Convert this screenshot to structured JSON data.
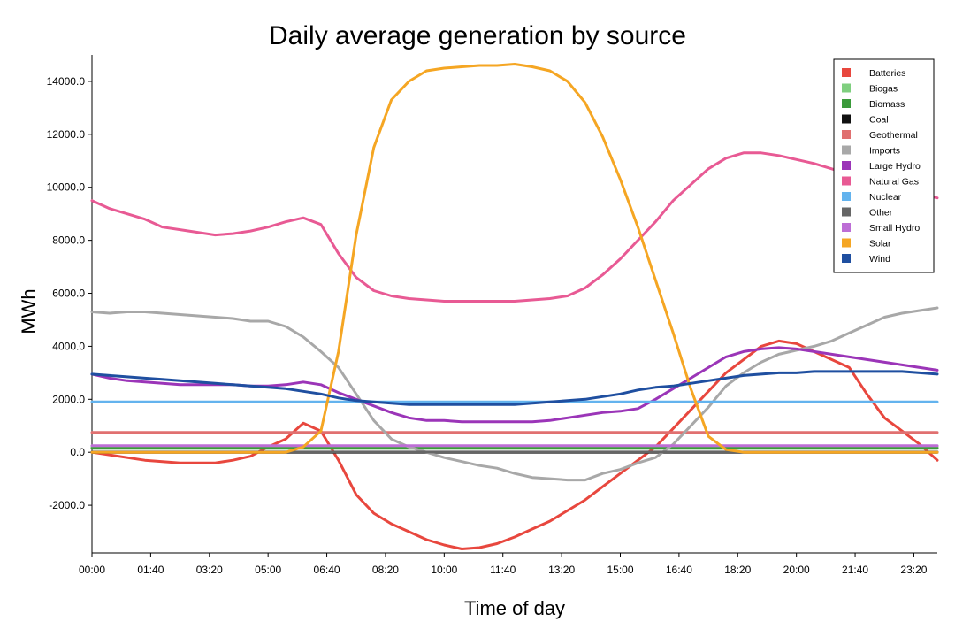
{
  "chart_data": {
    "type": "line",
    "title": "Daily average generation by source",
    "xlabel": "Time of day",
    "ylabel": "MWh",
    "x_ticks": [
      "00:00",
      "01:40",
      "03:20",
      "05:00",
      "06:40",
      "08:20",
      "10:00",
      "11:40",
      "13:20",
      "15:00",
      "16:40",
      "18:20",
      "20:00",
      "21:40",
      "23:20"
    ],
    "y_ticks": [
      -2000,
      0,
      2000,
      4000,
      6000,
      8000,
      10000,
      12000,
      14000
    ],
    "y_tick_labels": [
      "-2000.0",
      "0.0",
      "2000.0",
      "4000.0",
      "6000.0",
      "8000.0",
      "10000.0",
      "12000.0",
      "14000.0"
    ],
    "xlim": [
      "00:00",
      "24:00"
    ],
    "ylim": [
      -3800,
      15000
    ],
    "grid": false,
    "legend_position": "top-right",
    "x_hours": [
      0,
      0.5,
      1,
      1.5,
      2,
      2.5,
      3,
      3.5,
      4,
      4.5,
      5,
      5.5,
      6,
      6.5,
      7,
      7.5,
      8,
      8.5,
      9,
      9.5,
      10,
      10.5,
      11,
      11.5,
      12,
      12.5,
      13,
      13.5,
      14,
      14.5,
      15,
      15.5,
      16,
      16.5,
      17,
      17.5,
      18,
      18.5,
      19,
      19.5,
      20,
      20.5,
      21,
      21.5,
      22,
      22.5,
      23,
      23.5,
      24
    ],
    "series": [
      {
        "name": "Batteries",
        "color": "#e8473e",
        "values": [
          0,
          -100,
          -200,
          -300,
          -350,
          -400,
          -400,
          -400,
          -300,
          -150,
          200,
          500,
          1100,
          800,
          -300,
          -1600,
          -2300,
          -2700,
          -3000,
          -3300,
          -3500,
          -3650,
          -3600,
          -3450,
          -3200,
          -2900,
          -2600,
          -2200,
          -1800,
          -1300,
          -800,
          -300,
          200,
          900,
          1600,
          2300,
          3000,
          3500,
          4000,
          4200,
          4100,
          3800,
          3500,
          3200,
          2200,
          1300,
          800,
          300,
          -300
        ]
      },
      {
        "name": "Biogas",
        "color": "#7fcf7f",
        "values": [
          200,
          200,
          200,
          200,
          200,
          200,
          200,
          200,
          200,
          200,
          200,
          200,
          200,
          200,
          200,
          200,
          200,
          200,
          200,
          200,
          200,
          200,
          200,
          200,
          200,
          200,
          200,
          200,
          200,
          200,
          200,
          200,
          200,
          200,
          200,
          200,
          200,
          200,
          200,
          200,
          200,
          200,
          200,
          200,
          200,
          200,
          200,
          200,
          200
        ]
      },
      {
        "name": "Biomass",
        "color": "#3a9a3a",
        "values": [
          150,
          150,
          150,
          150,
          150,
          150,
          150,
          150,
          150,
          150,
          150,
          150,
          150,
          150,
          150,
          150,
          150,
          150,
          150,
          150,
          150,
          150,
          150,
          150,
          150,
          150,
          150,
          150,
          150,
          150,
          150,
          150,
          150,
          150,
          150,
          150,
          150,
          150,
          150,
          150,
          150,
          150,
          150,
          150,
          150,
          150,
          150,
          150,
          150
        ]
      },
      {
        "name": "Coal",
        "color": "#111111",
        "values": [
          0,
          0,
          0,
          0,
          0,
          0,
          0,
          0,
          0,
          0,
          0,
          0,
          0,
          0,
          0,
          0,
          0,
          0,
          0,
          0,
          0,
          0,
          0,
          0,
          0,
          0,
          0,
          0,
          0,
          0,
          0,
          0,
          0,
          0,
          0,
          0,
          0,
          0,
          0,
          0,
          0,
          0,
          0,
          0,
          0,
          0,
          0,
          0,
          0
        ]
      },
      {
        "name": "Geothermal",
        "color": "#e07070",
        "values": [
          750,
          750,
          750,
          750,
          750,
          750,
          750,
          750,
          750,
          750,
          750,
          750,
          750,
          750,
          750,
          750,
          750,
          750,
          750,
          750,
          750,
          750,
          750,
          750,
          750,
          750,
          750,
          750,
          750,
          750,
          750,
          750,
          750,
          750,
          750,
          750,
          750,
          750,
          750,
          750,
          750,
          750,
          750,
          750,
          750,
          750,
          750,
          750,
          750
        ]
      },
      {
        "name": "Imports",
        "color": "#a8a8a8",
        "values": [
          5300,
          5250,
          5300,
          5300,
          5250,
          5200,
          5150,
          5100,
          5050,
          4950,
          4950,
          4750,
          4350,
          3800,
          3200,
          2200,
          1200,
          500,
          200,
          0,
          -200,
          -350,
          -500,
          -600,
          -800,
          -950,
          -1000,
          -1050,
          -1050,
          -800,
          -650,
          -400,
          -200,
          300,
          1000,
          1700,
          2500,
          3000,
          3400,
          3700,
          3850,
          4000,
          4200,
          4500,
          4800,
          5100,
          5250,
          5350,
          5450
        ]
      },
      {
        "name": "Large Hydro",
        "color": "#9b35b8",
        "values": [
          2950,
          2800,
          2700,
          2650,
          2600,
          2550,
          2550,
          2550,
          2550,
          2500,
          2500,
          2550,
          2650,
          2550,
          2250,
          2000,
          1750,
          1500,
          1300,
          1200,
          1200,
          1150,
          1150,
          1150,
          1150,
          1150,
          1200,
          1300,
          1400,
          1500,
          1550,
          1650,
          2000,
          2400,
          2800,
          3200,
          3600,
          3800,
          3900,
          3950,
          3900,
          3800,
          3700,
          3600,
          3500,
          3400,
          3300,
          3200,
          3100
        ]
      },
      {
        "name": "Natural Gas",
        "color": "#e85a94",
        "values": [
          9500,
          9200,
          9000,
          8800,
          8500,
          8400,
          8300,
          8200,
          8250,
          8350,
          8500,
          8700,
          8850,
          8600,
          7500,
          6600,
          6100,
          5900,
          5800,
          5750,
          5700,
          5700,
          5700,
          5700,
          5700,
          5750,
          5800,
          5900,
          6200,
          6700,
          7300,
          8000,
          8700,
          9500,
          10100,
          10700,
          11100,
          11300,
          11300,
          11200,
          11050,
          10900,
          10700,
          10500,
          10300,
          10100,
          9900,
          9750,
          9600
        ]
      },
      {
        "name": "Nuclear",
        "color": "#63b3ee",
        "values": [
          1900,
          1900,
          1900,
          1900,
          1900,
          1900,
          1900,
          1900,
          1900,
          1900,
          1900,
          1900,
          1900,
          1900,
          1900,
          1900,
          1900,
          1900,
          1900,
          1900,
          1900,
          1900,
          1900,
          1900,
          1900,
          1900,
          1900,
          1900,
          1900,
          1900,
          1900,
          1900,
          1900,
          1900,
          1900,
          1900,
          1900,
          1900,
          1900,
          1900,
          1900,
          1900,
          1900,
          1900,
          1900,
          1900,
          1900,
          1900,
          1900
        ]
      },
      {
        "name": "Other",
        "color": "#666666",
        "values": [
          10,
          10,
          10,
          10,
          10,
          10,
          10,
          10,
          10,
          10,
          10,
          10,
          10,
          10,
          10,
          10,
          10,
          10,
          10,
          10,
          10,
          10,
          10,
          10,
          10,
          10,
          10,
          10,
          10,
          10,
          10,
          10,
          10,
          10,
          10,
          10,
          10,
          10,
          10,
          10,
          10,
          10,
          10,
          10,
          10,
          10,
          10,
          10,
          10
        ]
      },
      {
        "name": "Small Hydro",
        "color": "#bd6ed6",
        "values": [
          250,
          250,
          250,
          250,
          250,
          250,
          250,
          250,
          250,
          250,
          250,
          250,
          250,
          250,
          250,
          250,
          250,
          250,
          250,
          250,
          250,
          250,
          250,
          250,
          250,
          250,
          250,
          250,
          250,
          250,
          250,
          250,
          250,
          250,
          250,
          250,
          250,
          250,
          250,
          250,
          250,
          250,
          250,
          250,
          250,
          250,
          250,
          250,
          250
        ]
      },
      {
        "name": "Solar",
        "color": "#f5a623",
        "values": [
          0,
          0,
          0,
          0,
          0,
          0,
          0,
          0,
          0,
          0,
          0,
          0,
          200,
          800,
          3800,
          8200,
          11500,
          13300,
          14000,
          14400,
          14500,
          14550,
          14600,
          14600,
          14650,
          14550,
          14400,
          14000,
          13200,
          11900,
          10300,
          8500,
          6500,
          4500,
          2400,
          600,
          100,
          0,
          0,
          0,
          0,
          0,
          0,
          0,
          0,
          0,
          0,
          0,
          0
        ]
      },
      {
        "name": "Wind",
        "color": "#1f4fa0",
        "values": [
          2950,
          2900,
          2850,
          2800,
          2750,
          2700,
          2650,
          2600,
          2550,
          2500,
          2450,
          2400,
          2300,
          2200,
          2050,
          1950,
          1900,
          1850,
          1800,
          1800,
          1800,
          1800,
          1800,
          1800,
          1800,
          1850,
          1900,
          1950,
          2000,
          2100,
          2200,
          2350,
          2450,
          2500,
          2600,
          2700,
          2800,
          2900,
          2950,
          3000,
          3000,
          3050,
          3050,
          3050,
          3050,
          3050,
          3050,
          3000,
          2950
        ]
      }
    ]
  }
}
